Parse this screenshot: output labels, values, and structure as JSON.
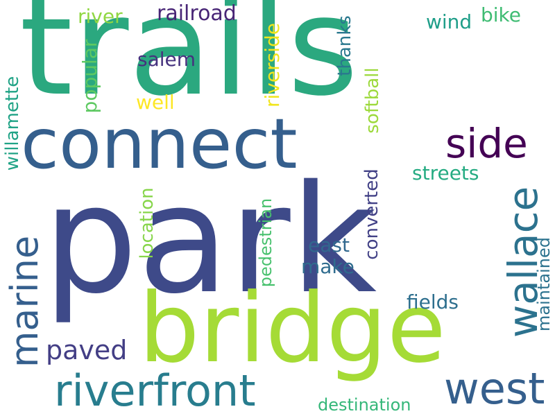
{
  "words": [
    {
      "text": "park",
      "color": "#3e4a89"
    },
    {
      "text": "trails",
      "color": "#2ba87f"
    },
    {
      "text": "bridge",
      "color": "#a5db36"
    },
    {
      "text": "connect",
      "color": "#355f8d"
    },
    {
      "text": "riverfront",
      "color": "#287d8e"
    },
    {
      "text": "west",
      "color": "#355f8d"
    },
    {
      "text": "side",
      "color": "#440154"
    },
    {
      "text": "wallace",
      "color": "#2c728e"
    },
    {
      "text": "marine",
      "color": "#355f8d"
    },
    {
      "text": "paved",
      "color": "#433e85"
    },
    {
      "text": "railroad",
      "color": "#482576"
    },
    {
      "text": "river",
      "color": "#90d743"
    },
    {
      "text": "salem",
      "color": "#46327e"
    },
    {
      "text": "well",
      "color": "#fde725"
    },
    {
      "text": "popular",
      "color": "#5ec962"
    },
    {
      "text": "willamette",
      "color": "#20a386"
    },
    {
      "text": "riverside",
      "color": "#f1e51d"
    },
    {
      "text": "thanks",
      "color": "#2a788e"
    },
    {
      "text": "softball",
      "color": "#9cd93b"
    },
    {
      "text": "wind",
      "color": "#1f9e89"
    },
    {
      "text": "bike",
      "color": "#3fbc73"
    },
    {
      "text": "streets",
      "color": "#25ab82"
    },
    {
      "text": "location",
      "color": "#86d549"
    },
    {
      "text": "converted",
      "color": "#424186"
    },
    {
      "text": "east",
      "color": "#31688e"
    },
    {
      "text": "make",
      "color": "#2f6c8e"
    },
    {
      "text": "pedestrian",
      "color": "#48c16e"
    },
    {
      "text": "maintained",
      "color": "#2c728e"
    },
    {
      "text": "fields",
      "color": "#2e6f8e"
    },
    {
      "text": "destination",
      "color": "#35b779"
    }
  ]
}
